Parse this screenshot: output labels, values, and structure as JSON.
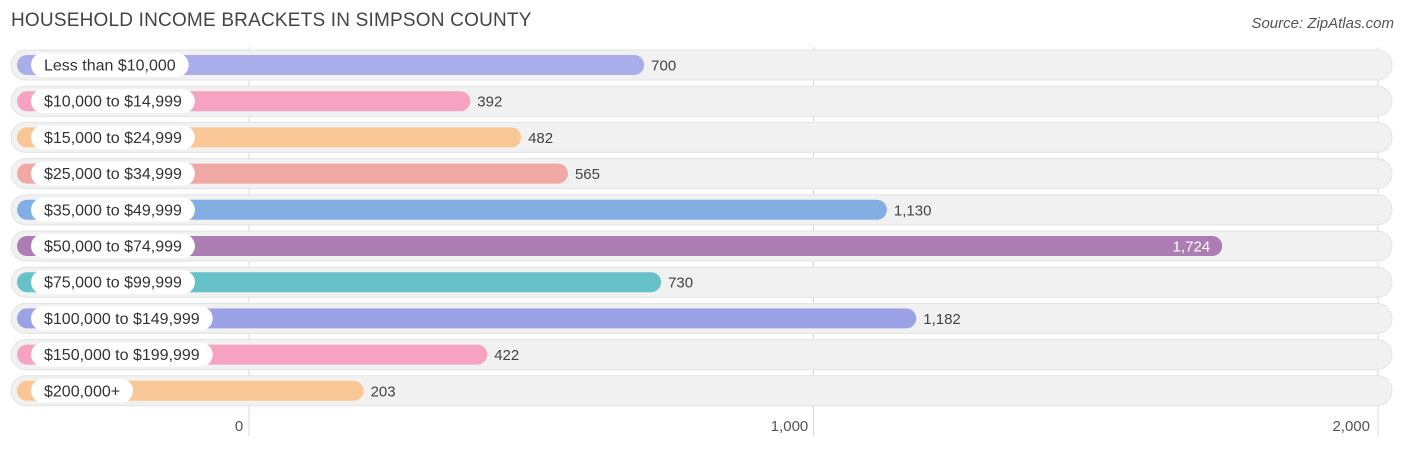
{
  "header": {
    "title": "HOUSEHOLD INCOME BRACKETS IN SIMPSON COUNTY",
    "source": "Source: ZipAtlas.com"
  },
  "chart_data": {
    "type": "bar",
    "orientation": "horizontal",
    "title": "HOUSEHOLD INCOME BRACKETS IN SIMPSON COUNTY",
    "categories": [
      "Less than $10,000",
      "$10,000 to $14,999",
      "$15,000 to $24,999",
      "$25,000 to $34,999",
      "$35,000 to $49,999",
      "$50,000 to $74,999",
      "$75,000 to $99,999",
      "$100,000 to $149,999",
      "$150,000 to $199,999",
      "$200,000+"
    ],
    "values": [
      700,
      392,
      482,
      565,
      1130,
      1724,
      730,
      1182,
      422,
      203
    ],
    "value_labels": [
      "700",
      "392",
      "482",
      "565",
      "1,130",
      "1,724",
      "730",
      "1,182",
      "422",
      "203"
    ],
    "colors": [
      "#a9aeeb",
      "#f5a3c0",
      "#f9c796",
      "#f0a8a4",
      "#82aee3",
      "#ac7db3",
      "#66c1c9",
      "#9ba3e6",
      "#f5a3c0",
      "#f9c796"
    ],
    "xlim": [
      0,
      2000
    ],
    "xticks": [
      0,
      1000,
      2000
    ],
    "xtick_labels": [
      "0",
      "1,000",
      "2,000"
    ],
    "grid": true
  }
}
